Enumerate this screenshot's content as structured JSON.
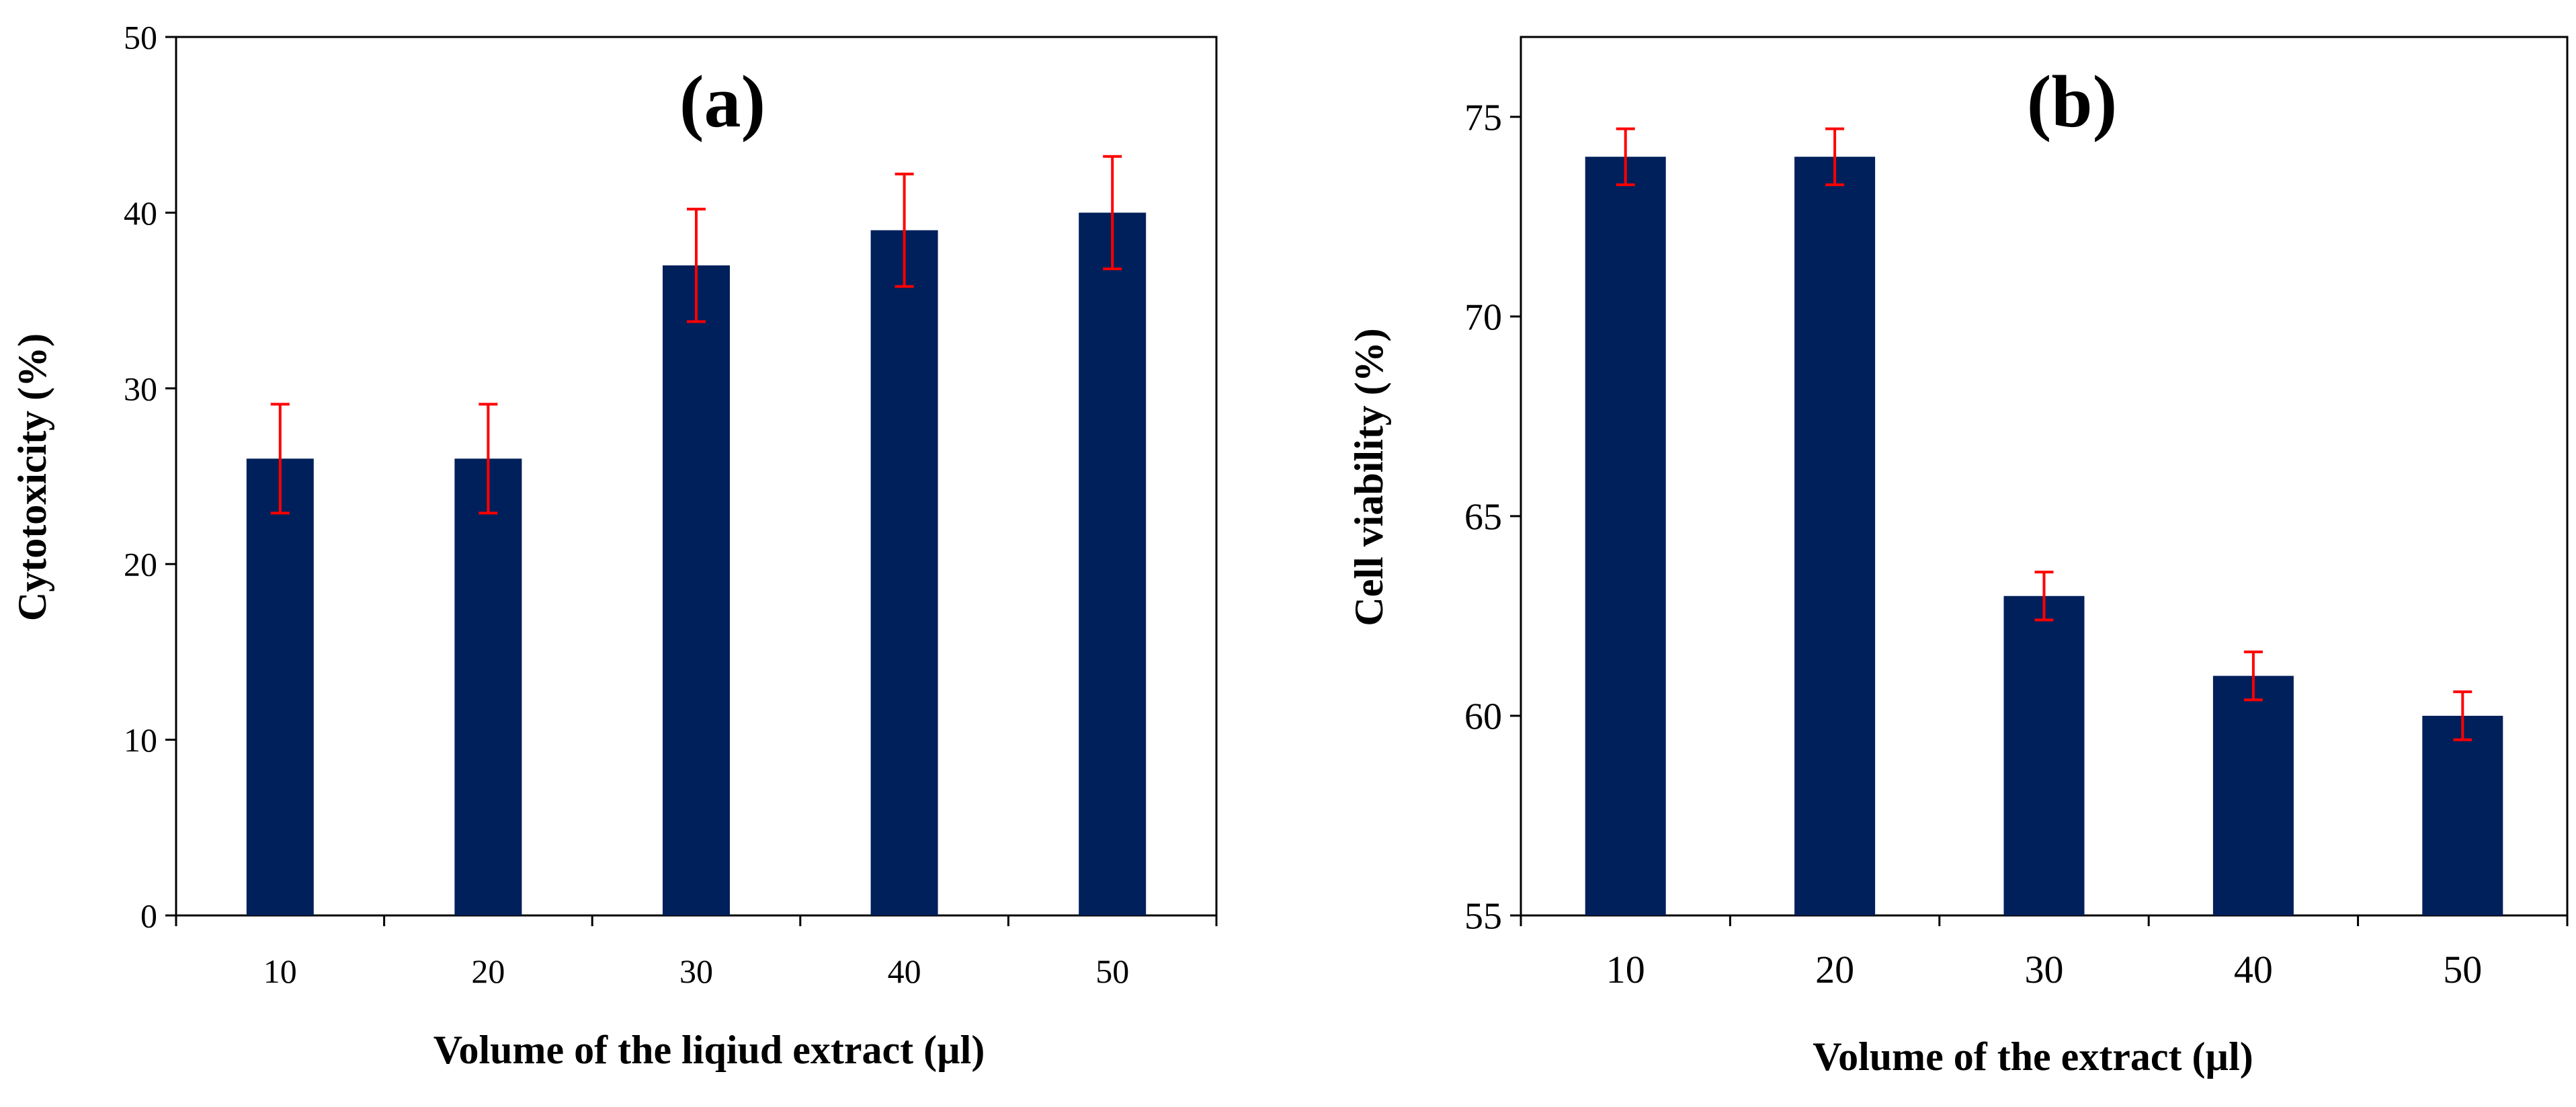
{
  "colors": {
    "bar": "#00205b",
    "error_bar": "#ff0000",
    "axis": "#000000"
  },
  "chart_data": [
    {
      "type": "bar",
      "title": "(a)",
      "xlabel": "Volume of the liqiud extract (µl)",
      "ylabel": "Cytotoxicity (%)",
      "categories": [
        "10",
        "20",
        "30",
        "40",
        "50"
      ],
      "values": [
        26,
        26,
        37,
        39,
        40
      ],
      "error": [
        3.1,
        3.1,
        3.2,
        3.2,
        3.2
      ],
      "ylim": [
        0,
        50
      ],
      "yticks": [
        0,
        10,
        20,
        30,
        40,
        50
      ],
      "grid": false,
      "legend": "none"
    },
    {
      "type": "bar",
      "title": "(b)",
      "xlabel": "Volume of the extract (µl)",
      "ylabel": "Cell viability (%)",
      "categories": [
        "10",
        "20",
        "30",
        "40",
        "50"
      ],
      "values": [
        74,
        74,
        63,
        61,
        60
      ],
      "error": [
        0.7,
        0.7,
        0.6,
        0.6,
        0.6
      ],
      "ylim": [
        55,
        77
      ],
      "yticks": [
        55,
        60,
        65,
        70,
        75
      ],
      "grid": false,
      "legend": "none"
    }
  ]
}
